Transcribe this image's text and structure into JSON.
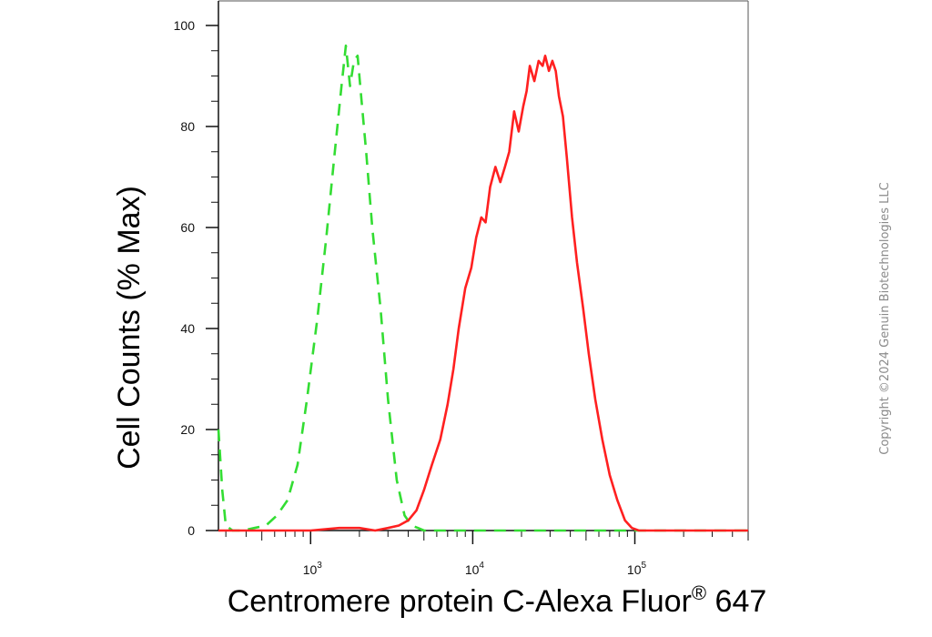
{
  "chart_data": {
    "type": "line",
    "title": "",
    "xlabel": "Centromere protein C-Alexa Fluor",
    "xlabel_superscript": "®",
    "xlabel_suffix": " 647",
    "ylabel": "Cell Counts (% Max)",
    "x_scale": "log",
    "xlim": [
      270,
      500000
    ],
    "ylim": [
      0,
      102
    ],
    "y_ticks": [
      0,
      20,
      40,
      60,
      80,
      100
    ],
    "y_tick_labels": [
      "0",
      "20",
      "40",
      "60",
      "80",
      "100"
    ],
    "x_major_ticks": [
      1000,
      10000,
      100000
    ],
    "x_tick_label_base": "10",
    "x_tick_label_exponents": [
      "3",
      "4",
      "5"
    ],
    "grid": false,
    "legend": "none",
    "series": [
      {
        "color": "#33dd33",
        "style": "dashed",
        "x": [
          270,
          285,
          300,
          330,
          380,
          450,
          530,
          620,
          720,
          830,
          950,
          1100,
          1250,
          1400,
          1550,
          1650,
          1750,
          1850,
          1950,
          2050,
          2200,
          2400,
          2700,
          3000,
          3400,
          3800,
          4200,
          4600,
          5000,
          6000,
          10000,
          30000,
          100000,
          500000
        ],
        "y": [
          20,
          8,
          1,
          0,
          0,
          0.5,
          1,
          3,
          6,
          13,
          26,
          42,
          58,
          74,
          88,
          96,
          88,
          93,
          94,
          86,
          75,
          60,
          44,
          26,
          10,
          3,
          1,
          0.5,
          0,
          0,
          0,
          0,
          0,
          0
        ]
      },
      {
        "color": "#ff2020",
        "style": "solid",
        "x": [
          270,
          1000,
          1500,
          2000,
          2500,
          3000,
          3500,
          4000,
          4500,
          5000,
          5600,
          6300,
          7000,
          7600,
          8200,
          9000,
          9800,
          10500,
          11300,
          12000,
          12800,
          13800,
          14800,
          15800,
          16800,
          18000,
          19200,
          20500,
          21500,
          22500,
          24000,
          25500,
          27000,
          28000,
          29500,
          31000,
          32500,
          34000,
          36000,
          38000,
          41000,
          44000,
          48000,
          52000,
          57000,
          63000,
          70000,
          78000,
          87000,
          96000,
          106000,
          120000,
          140000,
          170000,
          220000,
          500000
        ],
        "y": [
          0,
          0,
          0.5,
          0.5,
          0,
          0.5,
          1,
          2,
          4,
          8,
          13,
          18,
          25,
          32,
          40,
          48,
          52,
          58,
          62,
          61,
          68,
          72,
          69,
          72,
          75,
          83,
          79,
          84,
          87,
          92,
          89,
          93,
          92,
          94,
          91,
          93,
          91,
          86,
          82,
          74,
          62,
          53,
          44,
          35,
          26,
          18,
          11,
          6,
          2,
          0.5,
          0,
          0,
          0,
          0,
          0,
          0
        ]
      }
    ]
  },
  "watermark": "Copyright ©2024 Genuin Biotechnologies LLC"
}
